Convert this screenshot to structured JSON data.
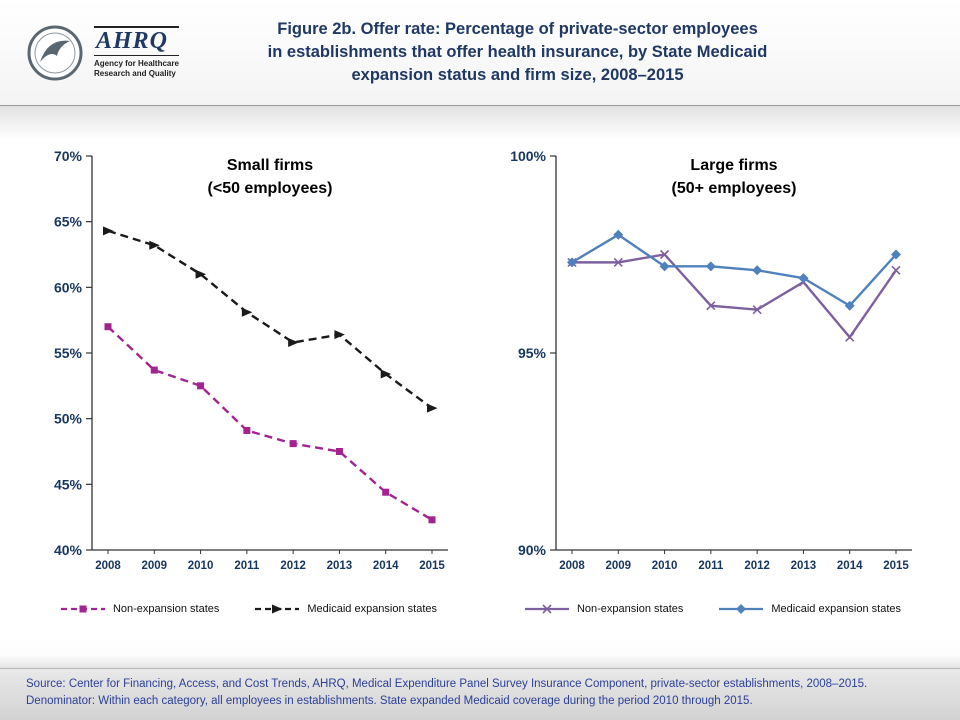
{
  "header": {
    "title_lines": [
      "Figure 2b. Offer rate: Percentage of private-sector employees",
      "in establishments that offer health insurance, by State Medicaid",
      "expansion status and firm size, 2008–2015"
    ],
    "logo": {
      "ahrq": "AHRQ",
      "sub1": "Agency for Healthcare",
      "sub2": "Research and Quality"
    }
  },
  "colors": {
    "title_text": "#1F3864",
    "axis_label": "#17365D",
    "axis_line": "#333333",
    "footer_text": "#2B3F97",
    "small_nonexpansion": "#A32390",
    "small_expansion": "#1A1A1A",
    "large_nonexpansion": "#7D60A0",
    "large_expansion": "#4F81BD"
  },
  "chart_data": [
    {
      "type": "line",
      "name": "small-firms",
      "title_lines": [
        "Small firms",
        "(<50 employees)"
      ],
      "categories": [
        "2008",
        "2009",
        "2010",
        "2011",
        "2012",
        "2013",
        "2014",
        "2015"
      ],
      "xlabel": "",
      "ylabel": "",
      "ylim": [
        40,
        70
      ],
      "ytick_values": [
        40,
        45,
        50,
        55,
        60,
        65,
        70
      ],
      "ytick_labels": [
        "40%",
        "45%",
        "50%",
        "55%",
        "60%",
        "65%",
        "70%"
      ],
      "grid": false,
      "legend_position": "bottom",
      "series": [
        {
          "name": "Non-expansion states",
          "values": [
            57.0,
            53.7,
            52.5,
            49.1,
            48.1,
            47.5,
            44.4,
            42.3
          ],
          "color": "#A32390",
          "dash": true,
          "marker": "square"
        },
        {
          "name": "Medicaid expansion states",
          "values": [
            64.3,
            63.2,
            61.0,
            58.1,
            55.8,
            56.4,
            53.4,
            50.8
          ],
          "color": "#1A1A1A",
          "dash": true,
          "marker": "triangle"
        }
      ]
    },
    {
      "type": "line",
      "name": "large-firms",
      "title_lines": [
        "Large firms",
        "(50+ employees)"
      ],
      "categories": [
        "2008",
        "2009",
        "2010",
        "2011",
        "2012",
        "2013",
        "2014",
        "2015"
      ],
      "xlabel": "",
      "ylabel": "",
      "ylim": [
        90,
        100
      ],
      "ytick_values": [
        90,
        95,
        100
      ],
      "ytick_labels": [
        "90%",
        "95%",
        "100%"
      ],
      "grid": false,
      "legend_position": "bottom",
      "series": [
        {
          "name": "Non-expansion states",
          "values": [
            97.3,
            97.3,
            97.5,
            96.2,
            96.1,
            96.8,
            95.4,
            97.1
          ],
          "color": "#7D60A0",
          "dash": false,
          "marker": "x"
        },
        {
          "name": "Medicaid expansion states",
          "values": [
            97.3,
            98.0,
            97.2,
            97.2,
            97.1,
            96.9,
            96.2,
            97.5
          ],
          "color": "#4F81BD",
          "dash": false,
          "marker": "diamond"
        }
      ]
    }
  ],
  "footer": {
    "source": "Source: Center for Financing, Access, and Cost Trends, AHRQ, Medical Expenditure Panel Survey Insurance Component, private-sector establishments, 2008–2015.",
    "denominator": "Denominator: Within each category, all employees in establishments. State expanded Medicaid coverage during the period 2010 through 2015."
  }
}
